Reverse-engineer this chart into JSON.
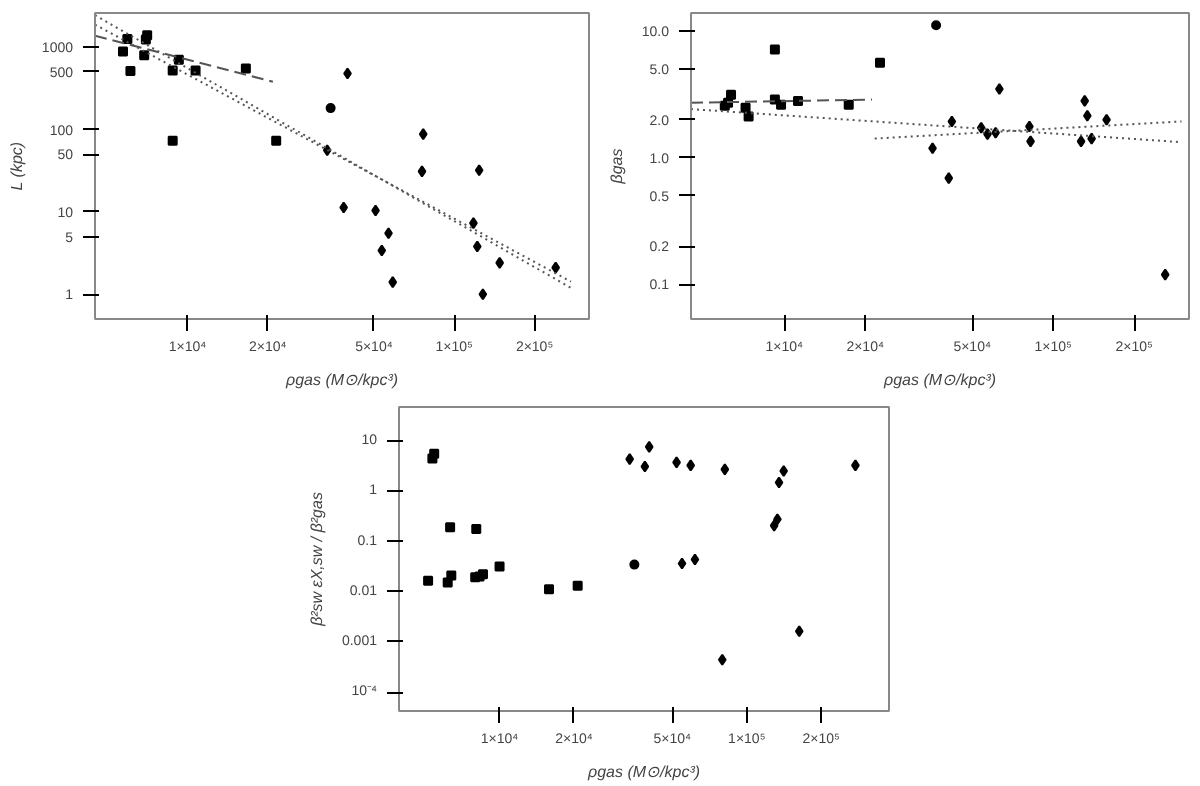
{
  "chart_data": [
    {
      "type": "scatter",
      "xlabel": "ρgas (M⊙/kpc³)",
      "ylabel": "L (kpc)",
      "log": "xy",
      "grid": false,
      "xlim": [
        4500,
        320000
      ],
      "ylim": [
        0.5,
        2600
      ],
      "xticks": [
        {
          "value": 10000,
          "label": "1×10⁴"
        },
        {
          "value": 20000,
          "label": "2×10⁴"
        },
        {
          "value": 50000,
          "label": "5×10⁴"
        },
        {
          "value": 100000,
          "label": "1×10⁵"
        },
        {
          "value": 200000,
          "label": "2×10⁵"
        }
      ],
      "yticks": [
        1,
        5,
        10,
        50,
        100,
        500,
        1000
      ],
      "series": [
        {
          "marker": "square",
          "color": "#000000",
          "x": [
            5730,
            5950,
            7060,
            6980,
            6880,
            8800,
            9280,
            10720,
            16550,
            6110,
            8800,
            21500
          ],
          "values": [
            885,
            1256,
            1396,
            1235,
            796,
            522,
            703,
            522,
            550,
            513,
            73,
            73
          ]
        },
        {
          "marker": "circle",
          "color": "#000000",
          "x": [
            34400
          ],
          "values": [
            182
          ]
        },
        {
          "marker": "diamond",
          "color": "#000000",
          "x": [
            39800,
            33400,
            76500,
            75700,
            124000,
            50700,
            56700,
            53500,
            118000,
            148000,
            128000,
            38500,
            58800,
            122000,
            240000
          ],
          "values": [
            478,
            56,
            88,
            31,
            32,
            10.4,
            5.5,
            3.4,
            7.3,
            2.4,
            1.0,
            11.3,
            1.4,
            3.8,
            2.1
          ]
        },
        {
          "type": "line",
          "line_style": "dashed",
          "color": "#555555",
          "x": [
            4500,
            20900
          ],
          "values": [
            1380,
            380
          ]
        },
        {
          "type": "line",
          "line_style": "dotted",
          "color": "#555555",
          "x": [
            4500,
            274000
          ],
          "values": [
            2450,
            1.19
          ]
        },
        {
          "type": "line",
          "line_style": "dotted",
          "color": "#555555",
          "x": [
            4500,
            274000
          ],
          "values": [
            1880,
            1.42
          ]
        }
      ]
    },
    {
      "type": "scatter",
      "xlabel": "ρgas (M⊙/kpc³)",
      "ylabel": "βgas",
      "log": "xy",
      "grid": false,
      "xlim": [
        4500,
        320000
      ],
      "ylim": [
        0.053,
        14
      ],
      "xticks": [
        {
          "value": 10000,
          "label": "1×10⁴"
        },
        {
          "value": 20000,
          "label": "2×10⁴"
        },
        {
          "value": 50000,
          "label": "5×10⁴"
        },
        {
          "value": 100000,
          "label": "1×10⁵"
        },
        {
          "value": 200000,
          "label": "2×10⁵"
        }
      ],
      "yticks": [
        {
          "value": 0.1,
          "label": "0.1"
        },
        {
          "value": 0.2,
          "label": "0.2"
        },
        {
          "value": 0.5,
          "label": "0.5"
        },
        {
          "value": 1,
          "label": "1.0"
        },
        {
          "value": 2,
          "label": "2.0"
        },
        {
          "value": 5,
          "label": "5.0"
        },
        {
          "value": 10,
          "label": "10.0"
        }
      ],
      "series": [
        {
          "marker": "square",
          "color": "#000000",
          "x": [
            6010,
            6180,
            7180,
            7370,
            9230,
            9730,
            11250,
            17370,
            6340,
            9230,
            22700
          ],
          "values": [
            2.58,
            2.73,
            2.49,
            2.12,
            2.89,
            2.63,
            2.82,
            2.63,
            3.16,
            7.2,
            5.65
          ]
        },
        {
          "marker": "circle",
          "color": "#000000",
          "x": [
            36700
          ],
          "values": [
            11.2
          ]
        },
        {
          "marker": "diamond",
          "color": "#000000",
          "x": [
            42000,
            35600,
            54000,
            57000,
            61100,
            81600,
            82400,
            127000,
            134000,
            139000,
            158000,
            40900,
            63100,
            131000,
            261000
          ],
          "values": [
            1.94,
            1.19,
            1.73,
            1.54,
            1.58,
            1.77,
            1.35,
            1.35,
            2.15,
            1.42,
            2.0,
            0.69,
            3.5,
            2.82,
            0.119
          ]
        },
        {
          "type": "line",
          "line_style": "dashed",
          "color": "#555555",
          "x": [
            4500,
            21200
          ],
          "values": [
            2.73,
            2.89
          ]
        },
        {
          "type": "line",
          "line_style": "dotted",
          "color": "#555555",
          "x": [
            4500,
            300000
          ],
          "values": [
            2.43,
            1.33
          ]
        },
        {
          "type": "line",
          "line_style": "dotted",
          "color": "#555555",
          "x": [
            21700,
            300000
          ],
          "values": [
            1.42,
            1.94
          ]
        }
      ]
    },
    {
      "type": "scatter",
      "xlabel": "ρgas (M⊙/kpc³)",
      "ylabel": "β²sw εX,sw / β²gas",
      "log": "xy",
      "grid": false,
      "xlim": [
        3920,
        376000
      ],
      "ylim": [
        4.2e-05,
        48
      ],
      "xticks": [
        {
          "value": 10000,
          "label": "1×10⁴"
        },
        {
          "value": 20000,
          "label": "2×10⁴"
        },
        {
          "value": 50000,
          "label": "5×10⁴"
        },
        {
          "value": 100000,
          "label": "1×10⁵"
        },
        {
          "value": 200000,
          "label": "2×10⁵"
        }
      ],
      "yticks": [
        {
          "value": 0.0001,
          "label": "10⁻⁴"
        },
        {
          "value": 0.001,
          "label": "0.001"
        },
        {
          "value": 0.01,
          "label": "0.01"
        },
        {
          "value": 0.1,
          "label": "0.1"
        },
        {
          "value": 1,
          "label": "1"
        },
        {
          "value": 10,
          "label": "10"
        }
      ],
      "series": [
        {
          "marker": "square",
          "color": "#000000",
          "x": [
            5140,
            6170,
            6380,
            6310,
            8050,
            7970,
            8570,
            10000,
            15850,
            5350,
            5440,
            20700,
            8300
          ],
          "values": [
            0.0166,
            0.0153,
            0.021,
            0.192,
            0.177,
            0.0194,
            0.0222,
            0.032,
            0.0112,
            4.54,
            5.6,
            0.0131,
            0.02
          ]
        },
        {
          "marker": "circle",
          "color": "#000000",
          "x": [
            35100
          ],
          "values": [
            0.0347
          ]
        },
        {
          "marker": "diamond",
          "color": "#000000",
          "x": [
            33600,
            38700,
            40300,
            52000,
            59300,
            81500,
            135000,
            141000,
            275000,
            54700,
            61700,
            79600,
            133000,
            129000,
            163000
          ],
          "values": [
            4.4,
            3.14,
            7.7,
            3.78,
            3.3,
            2.75,
            1.5,
            2.54,
            3.3,
            0.0366,
            0.044,
            0.00044,
            0.278,
            0.208,
            0.00163
          ]
        }
      ]
    }
  ]
}
